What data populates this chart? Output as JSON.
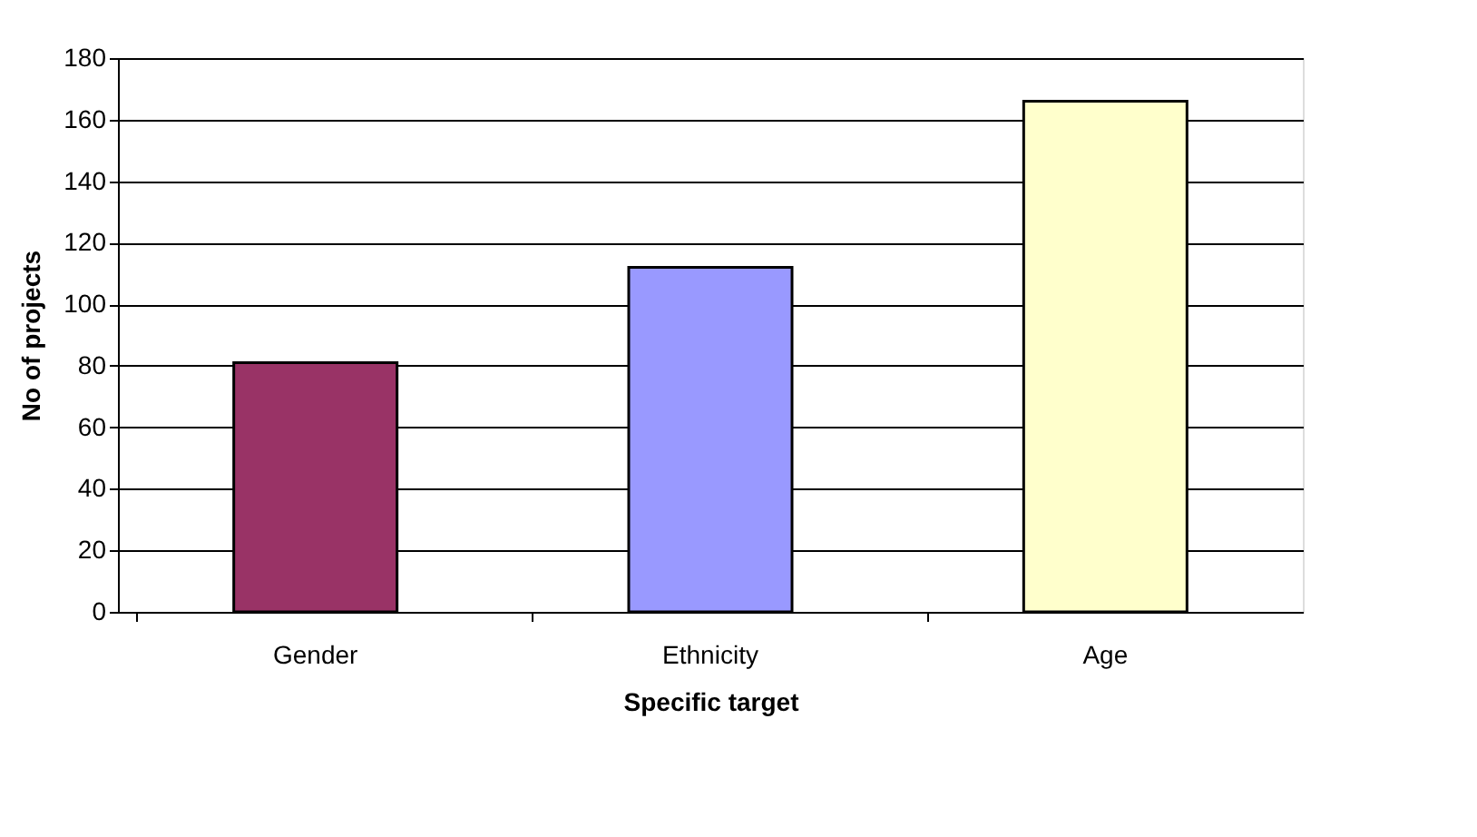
{
  "chart_data": {
    "type": "bar",
    "xlabel": "Specific target",
    "ylabel": "No of  projects",
    "categories": [
      "Gender",
      "Ethnicity",
      "Age"
    ],
    "values": [
      81,
      112,
      166
    ],
    "colors": [
      "#993366",
      "#9999ff",
      "#ffffcc"
    ],
    "ylim": [
      0,
      180
    ],
    "yticks": [
      0,
      20,
      40,
      60,
      80,
      100,
      120,
      140,
      160,
      180
    ],
    "grid": "y"
  }
}
